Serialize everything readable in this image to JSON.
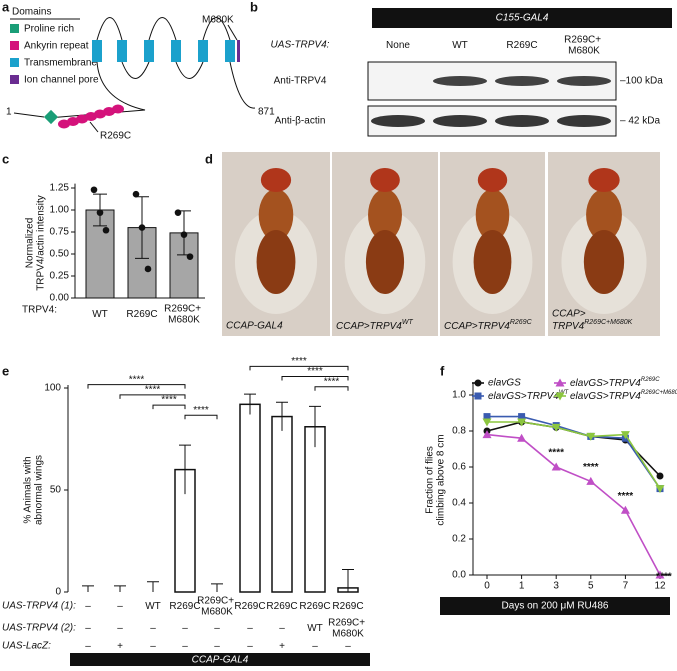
{
  "panel_labels": [
    "a",
    "b",
    "c",
    "d",
    "e",
    "f"
  ],
  "panel_a": {
    "legend_title": "Domains",
    "legend": [
      {
        "label": "Proline rich",
        "color": "#1a9e77"
      },
      {
        "label": "Ankyrin repeat",
        "color": "#d4127b"
      },
      {
        "label": "Transmembrane",
        "color": "#1ba1cc"
      },
      {
        "label": "Ion channel pore",
        "color": "#6a2c91"
      }
    ],
    "start": "1",
    "end": "871",
    "mutation_1": "M680K",
    "mutation_2": "R269C"
  },
  "panel_b": {
    "driver": "C155-GAL4",
    "row_label": "UAS-TRPV4:",
    "lanes": [
      "None",
      "WT",
      "R269C",
      "R269C+ M680K"
    ],
    "blots": [
      {
        "antibody": "Anti-TRPV4",
        "marker": "–100 kDa"
      },
      {
        "antibody": "Anti-β-actin",
        "marker": "– 42 kDa"
      }
    ]
  },
  "panel_d": {
    "captions": [
      {
        "text": "CCAP-GAL4"
      },
      {
        "text": "CCAP>TRPV4",
        "sup": "WT"
      },
      {
        "text": "CCAP>TRPV4",
        "sup": "R269C"
      },
      {
        "line1": "CCAP>",
        "text": "TRPV4",
        "sup": "R269C+M680K"
      }
    ]
  },
  "chart_data": [
    {
      "type": "bar",
      "ylabel": [
        "Normalized",
        "TRPV4/actin intensity"
      ],
      "row_label": "TRPV4:",
      "categories": [
        "WT",
        "R269C",
        "R269C+ M680K"
      ],
      "values": [
        1.0,
        0.8,
        0.74
      ],
      "errors": [
        0.18,
        0.35,
        0.25
      ],
      "points": [
        [
          1.23,
          0.97,
          0.77
        ],
        [
          1.18,
          0.8,
          0.33
        ],
        [
          0.97,
          0.72,
          0.47
        ]
      ],
      "color": "#a6a6a6",
      "ylim": [
        0,
        1.3
      ],
      "yticks": [
        {
          "value": 0,
          "label": "0.00"
        },
        {
          "value": 0.25,
          "label": "0.25"
        },
        {
          "value": 0.5,
          "label": "0.50"
        },
        {
          "value": 0.75,
          "label": "0.75"
        },
        {
          "value": 1,
          "label": "1.00"
        },
        {
          "value": 1.25,
          "label": "1.25"
        }
      ]
    },
    {
      "type": "bar",
      "ylabel": [
        "% Animals with",
        "abnormal wings"
      ],
      "values": [
        0,
        0,
        0,
        60,
        0,
        92,
        86,
        81,
        2
      ],
      "errors": [
        3,
        3,
        5,
        12,
        4,
        5,
        7,
        10,
        9
      ],
      "color": "#ffffff",
      "ylim": [
        0,
        100
      ],
      "yticks": [
        0,
        50,
        100
      ],
      "rows": [
        {
          "label": "UAS-TRPV4 (1):",
          "values": [
            "–",
            "–",
            "WT",
            "R269C",
            "R269C+ M680K",
            "R269C",
            "R269C",
            "R269C",
            "R269C"
          ]
        },
        {
          "label": "UAS-TRPV4 (2):",
          "values": [
            "–",
            "–",
            "–",
            "–",
            "–",
            "–",
            "–",
            "WT",
            "R269C+ M680K"
          ]
        },
        {
          "label": "UAS-LacZ:",
          "values": [
            "–",
            "+",
            "–",
            "–",
            "–",
            "–",
            "+",
            "–",
            "–"
          ]
        }
      ],
      "footer": "CCAP-GAL4",
      "significance": [
        "****",
        "****",
        "****",
        "****",
        "****",
        "****",
        "****"
      ]
    },
    {
      "type": "line",
      "ylabel": [
        "Fraction of flies",
        "climbing above 8 cm"
      ],
      "xlabel": "Days on 200 μM RU486",
      "categories": [
        "0",
        "1",
        "3",
        "5",
        "7",
        "12"
      ],
      "ylim": [
        0,
        1.07
      ],
      "yticks": [
        {
          "value": 0,
          "label": "0.0"
        },
        0.2,
        0.4,
        0.6,
        0.8,
        {
          "value": 1,
          "label": "1.0"
        }
      ],
      "series": [
        {
          "name": "elavGS",
          "color": "#111111",
          "values": [
            0.8,
            0.85,
            0.82,
            0.77,
            0.75,
            0.55
          ]
        },
        {
          "name": "elavGS>TRPV4",
          "name_sup": "WT",
          "color": "#3a5bb0",
          "values": [
            0.88,
            0.88,
            0.83,
            0.77,
            0.76,
            0.48
          ]
        },
        {
          "name": "elavGS>TRPV4",
          "name_sup": "R269C",
          "color": "#c04fc6",
          "values": [
            0.78,
            0.76,
            0.6,
            0.52,
            0.36,
            0
          ]
        },
        {
          "name": "elavGS>TRPV4",
          "name_sup": "R269C+M680K",
          "color": "#8cc63f",
          "values": [
            0.85,
            0.85,
            0.82,
            0.77,
            0.78,
            0.48
          ]
        }
      ],
      "annotations": [
        "****",
        "****",
        "****",
        "****"
      ]
    }
  ]
}
